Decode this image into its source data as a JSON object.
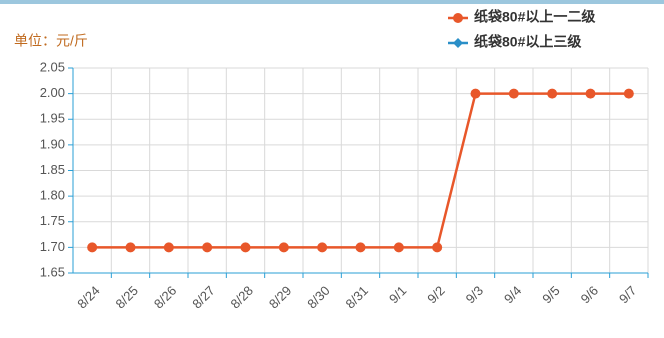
{
  "chart_data": {
    "type": "line",
    "y_label": "单位：元/斤",
    "categories": [
      "8/24",
      "8/25",
      "8/26",
      "8/27",
      "8/28",
      "8/29",
      "8/30",
      "8/31",
      "9/1",
      "9/2",
      "9/3",
      "9/4",
      "9/5",
      "9/6",
      "9/7"
    ],
    "series": [
      {
        "name": "纸袋80#以上一二级",
        "color": "#e8572a",
        "values": [
          1.7,
          1.7,
          1.7,
          1.7,
          1.7,
          1.7,
          1.7,
          1.7,
          1.7,
          1.7,
          2.0,
          2.0,
          2.0,
          2.0,
          2.0
        ]
      },
      {
        "name": "纸袋80#以上三级",
        "color": "#2a8fc8",
        "values": [
          null,
          null,
          null,
          null,
          null,
          null,
          null,
          null,
          null,
          null,
          null,
          null,
          null,
          null,
          null
        ]
      }
    ],
    "ylim": [
      1.65,
      2.05
    ],
    "yticks": [
      1.65,
      {
        "value": 1.7,
        "label": "1.70"
      },
      1.75,
      {
        "value": 1.8,
        "label": "1.80"
      },
      1.85,
      {
        "value": 1.9,
        "label": "1.90"
      },
      1.95,
      {
        "value": 2.0,
        "label": "2.00"
      },
      2.05
    ],
    "grid": true
  }
}
